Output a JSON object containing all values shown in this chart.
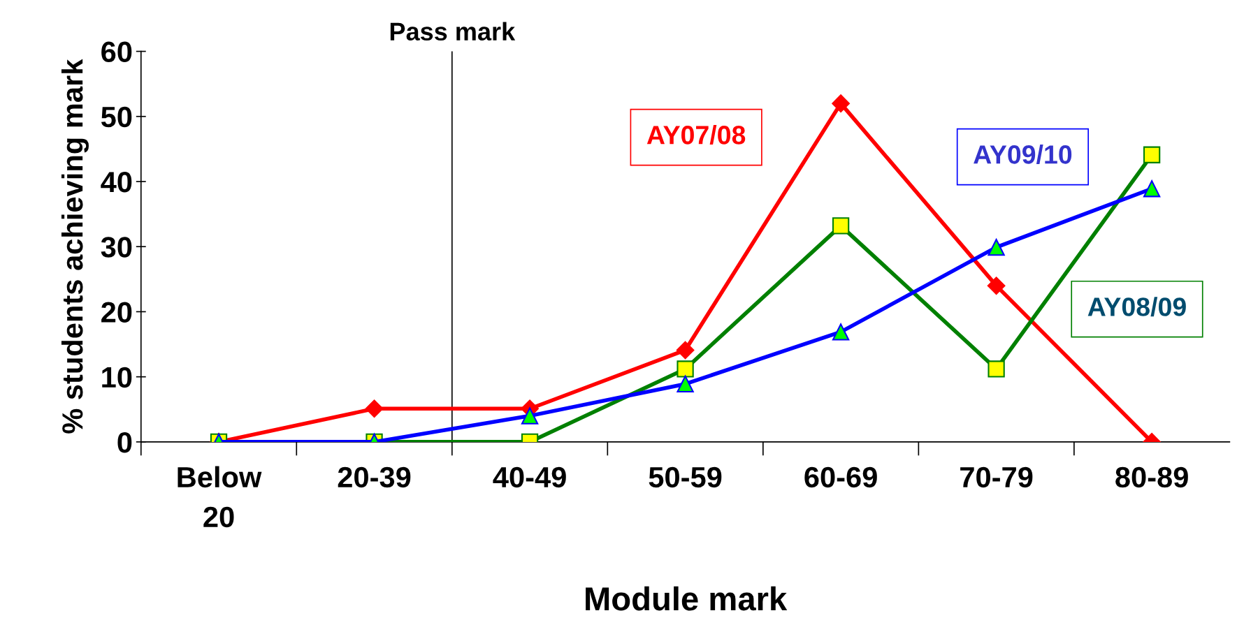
{
  "chart_data": {
    "type": "line",
    "xlabel": "Module mark",
    "ylabel": "% students achieving mark",
    "categories": [
      "Below\n20",
      "20-39",
      "40-49",
      "50-59",
      "60-69",
      "70-79",
      "80-89"
    ],
    "series": [
      {
        "name": "AY07/08",
        "color": "#ff0000",
        "marker": "diamond",
        "values": [
          0,
          5.1,
          5.1,
          14.1,
          52,
          24,
          0
        ]
      },
      {
        "name": "AY08/09",
        "color": "#008000",
        "marker": "square",
        "values": [
          0,
          0,
          0,
          11.2,
          33.2,
          11.2,
          44.1
        ]
      },
      {
        "name": "AY09/10",
        "color": "#0000ff",
        "marker": "triangle",
        "values": [
          0,
          0,
          4,
          8.9,
          16.9,
          29.9,
          38.9
        ]
      }
    ],
    "ylim": [
      0,
      60
    ],
    "yticks": [
      0,
      10,
      20,
      30,
      40,
      50,
      60
    ],
    "annotations": [
      "Pass mark"
    ],
    "grid": false,
    "legend": false,
    "line_style": "solid"
  }
}
